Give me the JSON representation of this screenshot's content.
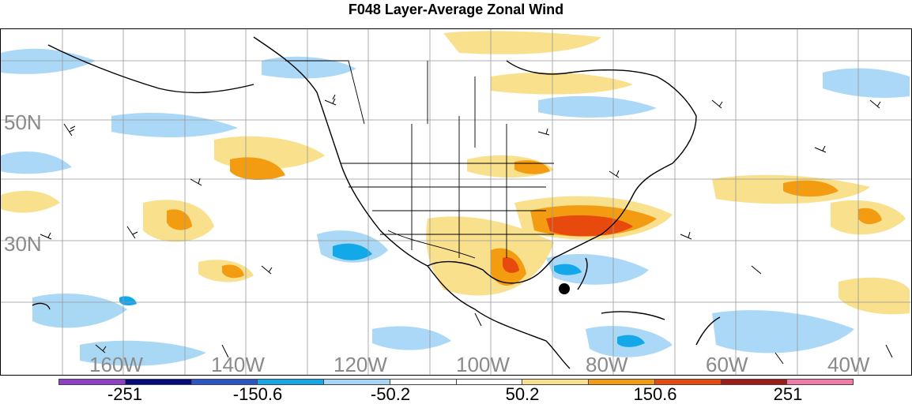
{
  "title": "F048 Layer-Average Zonal Wind",
  "latitude_labels": [
    "50N",
    "30N"
  ],
  "longitude_labels": [
    "160W",
    "140W",
    "120W",
    "100W",
    "80W",
    "60W",
    "40W"
  ],
  "colorbar": {
    "colors": [
      "#8e3fc7",
      "#050a7f",
      "#2a55c8",
      "#13a8ea",
      "#a5d6f5",
      "#ffffff",
      "#ffffff",
      "#f8e08c",
      "#f39c12",
      "#e84a0e",
      "#a01a17",
      "#f27aa8"
    ],
    "labels": [
      "-251",
      "-150.6",
      "-50.2",
      "50.2",
      "150.6",
      "251"
    ]
  },
  "marker": {
    "name": "storm-center",
    "color": "#000000"
  }
}
